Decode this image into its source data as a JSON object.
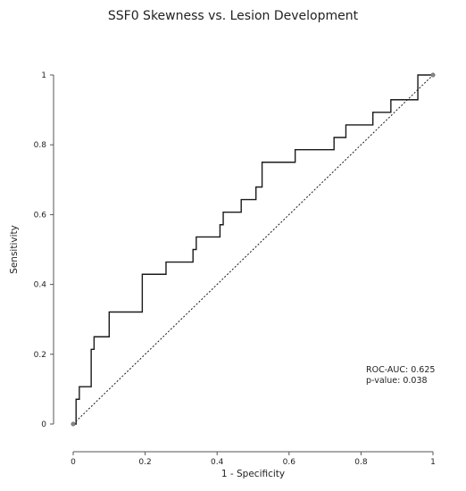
{
  "chart_data": {
    "type": "line",
    "title": "SSF0 Skewness vs. Lesion Development",
    "xlabel": "1 - Specificity",
    "ylabel": "Sensitivity",
    "xlim": [
      0,
      1
    ],
    "ylim": [
      0,
      1
    ],
    "xticks": [
      "0",
      "0.2",
      "0.4",
      "0.6",
      "0.8",
      "1"
    ],
    "yticks": [
      "0",
      "0.2",
      "0.4",
      "0.6",
      "0.8",
      "1"
    ],
    "grid": false,
    "legend": "none",
    "annotations": [
      "ROC-AUC: 0.625",
      "p-value: 0.038"
    ],
    "series": [
      {
        "style": "step",
        "color": "#1a1a1a",
        "x": [
          0,
          0.008,
          0.008,
          0.017,
          0.017,
          0.05,
          0.05,
          0.058,
          0.058,
          0.1,
          0.1,
          0.192,
          0.192,
          0.258,
          0.258,
          0.333,
          0.333,
          0.342,
          0.342,
          0.408,
          0.408,
          0.417,
          0.417,
          0.467,
          0.467,
          0.508,
          0.508,
          0.525,
          0.525,
          0.617,
          0.617,
          0.725,
          0.725,
          0.758,
          0.758,
          0.833,
          0.833,
          0.883,
          0.883,
          0.958,
          0.958,
          1.0
        ],
        "y": [
          0,
          0,
          0.071,
          0.071,
          0.107,
          0.107,
          0.214,
          0.214,
          0.25,
          0.25,
          0.321,
          0.321,
          0.429,
          0.429,
          0.464,
          0.464,
          0.5,
          0.5,
          0.536,
          0.536,
          0.571,
          0.571,
          0.607,
          0.607,
          0.643,
          0.643,
          0.679,
          0.679,
          0.75,
          0.75,
          0.786,
          0.786,
          0.821,
          0.821,
          0.857,
          0.857,
          0.893,
          0.893,
          0.929,
          0.929,
          1.0,
          1.0
        ]
      },
      {
        "style": "dotted",
        "color": "#1a1a1a",
        "x": [
          0,
          1
        ],
        "y": [
          0,
          1
        ]
      }
    ]
  }
}
